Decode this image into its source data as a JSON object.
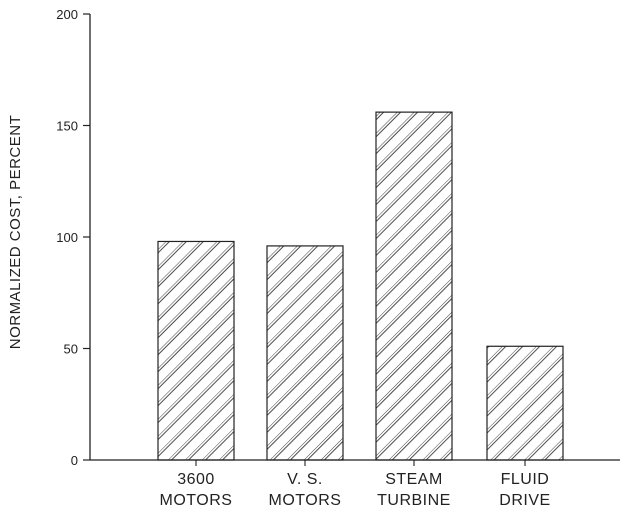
{
  "chart_data": {
    "type": "bar",
    "title": "",
    "xlabel": "",
    "ylabel": "NORMALIZED COST, PERCENT",
    "ylim": [
      0,
      200
    ],
    "yticks": [
      0,
      50,
      100,
      150,
      200
    ],
    "grid": false,
    "fill_pattern": "diagonal-hatch",
    "categories": [
      [
        "3600",
        "MOTORS"
      ],
      [
        "V. S.",
        "MOTORS"
      ],
      [
        "STEAM",
        "TURBINE"
      ],
      [
        "FLUID",
        "DRIVE"
      ]
    ],
    "values": [
      98,
      96,
      156,
      51
    ]
  }
}
